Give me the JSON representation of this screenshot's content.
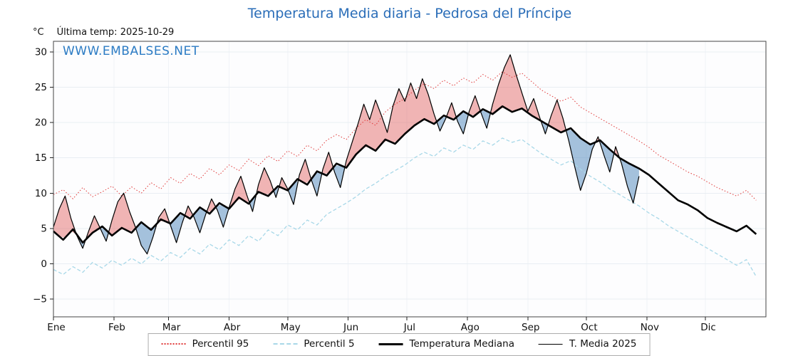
{
  "header": {
    "title": "Temperatura Media diaria - Pedrosa del Príncipe",
    "unit_label": "°C",
    "last_temp_label": "Última temp: 2025-10-29",
    "watermark": "WWW.EMBALSES.NET"
  },
  "chart_data": {
    "type": "line",
    "title": "Temperatura Media diaria - Pedrosa del Príncipe",
    "xlabel": "",
    "ylabel": "°C",
    "x_unit": "day_of_year",
    "xlim": [
      0,
      365
    ],
    "ylim": [
      -7.5,
      31.5
    ],
    "yticks": [
      -5,
      0,
      5,
      10,
      15,
      20,
      25,
      30
    ],
    "grid": true,
    "month_labels": [
      "Ene",
      "Feb",
      "Mar",
      "Abr",
      "May",
      "Jun",
      "Jul",
      "Ago",
      "Sep",
      "Oct",
      "Nov",
      "Dic"
    ],
    "month_start_days": [
      0,
      31,
      59,
      90,
      120,
      151,
      181,
      212,
      243,
      273,
      304,
      334
    ],
    "colors": {
      "title": "#2a6db8",
      "watermark": "#2b7bc4",
      "percentil95": "#e03a3a",
      "percentil5": "#a8d8e8",
      "mediana": "#000000",
      "media2025": "#000000",
      "fill_above": "#e05a5a",
      "fill_below": "#5b8fc0",
      "grid": "#e9eef3",
      "border": "#444444"
    },
    "series": [
      {
        "id": "percentil95",
        "name": "Percentil 95",
        "line": "dotted",
        "x0": 0,
        "dx": 5,
        "values": [
          9.8,
          10.5,
          9.2,
          10.8,
          9.5,
          10.2,
          11.0,
          9.6,
          10.9,
          10.0,
          11.5,
          10.6,
          12.2,
          11.4,
          12.8,
          12.0,
          13.5,
          12.6,
          14.0,
          13.2,
          14.8,
          13.9,
          15.3,
          14.5,
          16.0,
          15.2,
          16.8,
          16.0,
          17.5,
          18.3,
          17.6,
          19.2,
          20.4,
          19.6,
          21.5,
          22.6,
          23.4,
          24.6,
          25.5,
          24.8,
          26.0,
          25.2,
          26.3,
          25.6,
          26.8,
          26.0,
          27.2,
          26.4,
          27.0,
          25.8,
          24.6,
          23.8,
          23.0,
          23.6,
          22.2,
          21.4,
          20.6,
          19.8,
          19.0,
          18.2,
          17.4,
          16.5,
          15.4,
          14.6,
          13.8,
          13.0,
          12.4,
          11.6,
          10.8,
          10.2,
          9.6,
          10.4,
          9.0
        ]
      },
      {
        "id": "percentil5",
        "name": "Percentil 5",
        "line": "dashed",
        "x0": 0,
        "dx": 5,
        "values": [
          -0.8,
          -1.5,
          -0.4,
          -1.2,
          0.2,
          -0.6,
          0.5,
          -0.2,
          0.8,
          0.0,
          1.2,
          0.4,
          1.6,
          0.9,
          2.2,
          1.4,
          2.8,
          2.0,
          3.4,
          2.6,
          4.0,
          3.2,
          4.8,
          4.0,
          5.5,
          4.8,
          6.2,
          5.5,
          7.0,
          7.8,
          8.6,
          9.5,
          10.6,
          11.4,
          12.4,
          13.2,
          14.0,
          15.0,
          15.8,
          15.2,
          16.4,
          15.8,
          16.8,
          16.2,
          17.4,
          16.8,
          17.8,
          17.2,
          17.6,
          16.6,
          15.6,
          14.8,
          14.0,
          14.6,
          13.4,
          12.4,
          11.6,
          10.6,
          9.8,
          9.0,
          8.2,
          7.2,
          6.4,
          5.4,
          4.6,
          3.8,
          3.0,
          2.2,
          1.4,
          0.6,
          -0.2,
          0.6,
          -1.8
        ]
      },
      {
        "id": "mediana",
        "name": "Temperatura Mediana",
        "line": "solid-thick",
        "x0": 0,
        "dx": 5,
        "values": [
          4.6,
          3.4,
          4.9,
          3.0,
          4.4,
          5.3,
          4.0,
          5.1,
          4.4,
          5.9,
          4.8,
          6.3,
          5.7,
          7.2,
          6.4,
          8.0,
          7.1,
          8.6,
          7.8,
          9.4,
          8.5,
          10.2,
          9.6,
          11.0,
          10.4,
          12.0,
          11.2,
          13.1,
          12.5,
          14.2,
          13.6,
          15.5,
          16.8,
          16.0,
          17.6,
          17.0,
          18.4,
          19.6,
          20.5,
          19.8,
          21.0,
          20.4,
          21.6,
          20.8,
          21.9,
          21.2,
          22.3,
          21.5,
          22.0,
          21.0,
          20.2,
          19.4,
          18.6,
          19.2,
          17.8,
          16.9,
          17.5,
          16.2,
          15.0,
          14.2,
          13.5,
          12.6,
          11.4,
          10.2,
          9.0,
          8.4,
          7.6,
          6.5,
          5.8,
          5.2,
          4.6,
          5.4,
          4.2
        ]
      },
      {
        "id": "media2025",
        "name": "T. Media 2025",
        "line": "solid-thin",
        "x0": 0,
        "dx": 3,
        "values": [
          5.2,
          7.8,
          9.6,
          6.4,
          4.0,
          2.2,
          4.6,
          6.8,
          5.0,
          3.2,
          6.2,
          8.8,
          10.0,
          7.4,
          5.2,
          2.6,
          1.4,
          3.8,
          6.6,
          7.8,
          5.4,
          3.0,
          5.8,
          8.2,
          6.6,
          4.4,
          7.0,
          9.2,
          7.6,
          5.2,
          8.0,
          10.6,
          12.4,
          9.8,
          7.4,
          11.2,
          13.6,
          11.8,
          9.4,
          12.2,
          10.6,
          8.4,
          12.6,
          14.8,
          12.0,
          9.6,
          13.4,
          15.8,
          13.0,
          10.8,
          14.6,
          17.2,
          19.8,
          22.6,
          20.4,
          23.2,
          21.0,
          18.6,
          22.4,
          24.8,
          23.0,
          25.6,
          23.4,
          26.2,
          24.0,
          21.2,
          18.8,
          20.6,
          22.8,
          20.2,
          18.4,
          21.6,
          23.8,
          21.4,
          19.2,
          22.6,
          25.4,
          27.8,
          29.6,
          26.8,
          24.2,
          21.6,
          23.4,
          20.8,
          18.4,
          21.0,
          23.2,
          20.6,
          17.4,
          13.8,
          10.4,
          12.8,
          16.2,
          18.0,
          15.4,
          13.0,
          16.6,
          14.2,
          11.0,
          8.6,
          12.4
        ]
      }
    ],
    "legend": [
      {
        "label": "Percentil 95",
        "style": "dotted-red"
      },
      {
        "label": "Percentil 5",
        "style": "dashed-lightblue"
      },
      {
        "label": "Temperatura Mediana",
        "style": "solid-thick-black"
      },
      {
        "label": "T. Media 2025",
        "style": "solid-thin-black"
      }
    ],
    "legend_position": "bottom"
  }
}
